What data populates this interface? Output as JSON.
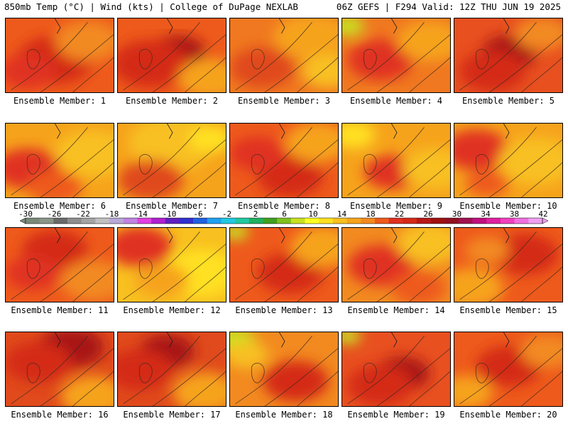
{
  "header": {
    "left": "850mb Temp (°C) | Wind (kts) | College of DuPage NEXLAB",
    "right": "06Z GEFS | F294 Valid: 12Z THU JUN 19 2025"
  },
  "panels": [
    {
      "label": "Ensemble Member: 1",
      "base": "#ee5a1c",
      "blobs": [
        [
          "#d42a18",
          0.45,
          0.55,
          0.35
        ],
        [
          "#f28a20",
          0.75,
          0.3,
          0.3
        ],
        [
          "#e03020",
          0.2,
          0.7,
          0.25
        ]
      ]
    },
    {
      "label": "Ensemble Member: 2",
      "base": "#ee5a1c",
      "blobs": [
        [
          "#a81818",
          0.55,
          0.45,
          0.25
        ],
        [
          "#d42a18",
          0.3,
          0.6,
          0.35
        ],
        [
          "#f6a31c",
          0.85,
          0.8,
          0.3
        ]
      ]
    },
    {
      "label": "Ensemble Member: 3",
      "base": "#f07820",
      "blobs": [
        [
          "#f6a31c",
          0.75,
          0.25,
          0.35
        ],
        [
          "#e04a1c",
          0.3,
          0.65,
          0.3
        ],
        [
          "#f8c020",
          0.9,
          0.7,
          0.25
        ]
      ]
    },
    {
      "label": "Ensemble Member: 4",
      "base": "#f07820",
      "blobs": [
        [
          "#c8e020",
          0.05,
          0.1,
          0.15
        ],
        [
          "#e03020",
          0.35,
          0.55,
          0.3
        ],
        [
          "#f6a31c",
          0.8,
          0.3,
          0.3
        ]
      ]
    },
    {
      "label": "Ensemble Member: 5",
      "base": "#e85020",
      "blobs": [
        [
          "#a81818",
          0.5,
          0.45,
          0.25
        ],
        [
          "#d42a18",
          0.35,
          0.7,
          0.3
        ],
        [
          "#f28a20",
          0.8,
          0.2,
          0.25
        ]
      ]
    },
    {
      "label": "Ensemble Member: 6",
      "base": "#f6a31c",
      "blobs": [
        [
          "#e03020",
          0.2,
          0.6,
          0.3
        ],
        [
          "#f8c020",
          0.8,
          0.4,
          0.35
        ],
        [
          "#ee5a1c",
          0.45,
          0.85,
          0.25
        ]
      ]
    },
    {
      "label": "Ensemble Member: 7",
      "base": "#f6a31c",
      "blobs": [
        [
          "#f8c020",
          0.5,
          0.25,
          0.4
        ],
        [
          "#e04a1c",
          0.3,
          0.75,
          0.3
        ],
        [
          "#ffe020",
          0.85,
          0.2,
          0.2
        ]
      ]
    },
    {
      "label": "Ensemble Member: 8",
      "base": "#ee5a1c",
      "blobs": [
        [
          "#d42a18",
          0.55,
          0.7,
          0.3
        ],
        [
          "#f6a31c",
          0.8,
          0.25,
          0.3
        ],
        [
          "#e03020",
          0.25,
          0.4,
          0.25
        ]
      ]
    },
    {
      "label": "Ensemble Member: 9",
      "base": "#f6a31c",
      "blobs": [
        [
          "#e03020",
          0.45,
          0.65,
          0.25
        ],
        [
          "#ffe020",
          0.1,
          0.15,
          0.2
        ],
        [
          "#f8c020",
          0.85,
          0.6,
          0.3
        ]
      ]
    },
    {
      "label": "Ensemble Member: 10",
      "base": "#f6a31c",
      "blobs": [
        [
          "#e03020",
          0.2,
          0.35,
          0.3
        ],
        [
          "#f8c020",
          0.75,
          0.5,
          0.35
        ],
        [
          "#ee5a1c",
          0.3,
          0.8,
          0.2
        ]
      ]
    },
    {
      "label": "Ensemble Member: 11",
      "base": "#ee5a1c",
      "blobs": [
        [
          "#d42a18",
          0.45,
          0.3,
          0.3
        ],
        [
          "#f28a20",
          0.8,
          0.7,
          0.3
        ],
        [
          "#e03020",
          0.25,
          0.6,
          0.25
        ]
      ]
    },
    {
      "label": "Ensemble Member: 12",
      "base": "#f8c020",
      "blobs": [
        [
          "#ffe020",
          0.75,
          0.6,
          0.35
        ],
        [
          "#e03020",
          0.2,
          0.25,
          0.3
        ],
        [
          "#f6a31c",
          0.4,
          0.7,
          0.25
        ]
      ]
    },
    {
      "label": "Ensemble Member: 13",
      "base": "#ee5a1c",
      "blobs": [
        [
          "#d42a18",
          0.55,
          0.6,
          0.3
        ],
        [
          "#c8e020",
          0.05,
          0.05,
          0.12
        ],
        [
          "#f6a31c",
          0.85,
          0.25,
          0.3
        ]
      ]
    },
    {
      "label": "Ensemble Member: 14",
      "base": "#f28a20",
      "blobs": [
        [
          "#e03020",
          0.35,
          0.5,
          0.3
        ],
        [
          "#f8c020",
          0.8,
          0.2,
          0.3
        ],
        [
          "#ee5a1c",
          0.7,
          0.8,
          0.25
        ]
      ]
    },
    {
      "label": "Ensemble Member: 15",
      "base": "#ee5a1c",
      "blobs": [
        [
          "#d42a18",
          0.65,
          0.35,
          0.3
        ],
        [
          "#f6a31c",
          0.15,
          0.8,
          0.3
        ],
        [
          "#f28a20",
          0.3,
          0.3,
          0.2
        ]
      ]
    },
    {
      "label": "Ensemble Member: 16",
      "base": "#e04a1c",
      "blobs": [
        [
          "#a81818",
          0.6,
          0.2,
          0.3
        ],
        [
          "#d42a18",
          0.3,
          0.4,
          0.3
        ],
        [
          "#f6a31c",
          0.8,
          0.85,
          0.3
        ]
      ]
    },
    {
      "label": "Ensemble Member: 17",
      "base": "#e04a1c",
      "blobs": [
        [
          "#a81818",
          0.45,
          0.25,
          0.25
        ],
        [
          "#d42a18",
          0.2,
          0.5,
          0.3
        ],
        [
          "#f6a31c",
          0.8,
          0.8,
          0.3
        ]
      ]
    },
    {
      "label": "Ensemble Member: 18",
      "base": "#f28a20",
      "blobs": [
        [
          "#c8e020",
          0.05,
          0.1,
          0.18
        ],
        [
          "#d42a18",
          0.6,
          0.65,
          0.3
        ],
        [
          "#f8c020",
          0.15,
          0.3,
          0.2
        ]
      ]
    },
    {
      "label": "Ensemble Member: 19",
      "base": "#e85020",
      "blobs": [
        [
          "#a81818",
          0.55,
          0.55,
          0.25
        ],
        [
          "#c8e020",
          0.05,
          0.05,
          0.12
        ],
        [
          "#d42a18",
          0.35,
          0.7,
          0.3
        ]
      ]
    },
    {
      "label": "Ensemble Member: 20",
      "base": "#ee5a1c",
      "blobs": [
        [
          "#d42a18",
          0.5,
          0.45,
          0.3
        ],
        [
          "#f6a31c",
          0.1,
          0.8,
          0.25
        ],
        [
          "#f28a20",
          0.85,
          0.25,
          0.25
        ]
      ]
    }
  ],
  "colorbar": {
    "ticks": [
      "-30",
      "-26",
      "-22",
      "-18",
      "-14",
      "-10",
      "-6",
      "-2",
      "2",
      "6",
      "10",
      "14",
      "18",
      "22",
      "26",
      "30",
      "34",
      "38",
      "42"
    ],
    "colors": [
      "#7a8a7a",
      "#8a968a",
      "#6a6a6a",
      "#8e8e8e",
      "#a4a4a4",
      "#c0c0c0",
      "#b8a8d8",
      "#c084e0",
      "#e040e0",
      "#b020d0",
      "#6020c0",
      "#3030d0",
      "#2060e0",
      "#20a0f0",
      "#20c8e0",
      "#20c8a0",
      "#20b060",
      "#40a020",
      "#80c020",
      "#c8e020",
      "#ffff20",
      "#ffe020",
      "#f8c020",
      "#f6a31c",
      "#f28a20",
      "#ee5a1c",
      "#e03020",
      "#d42a18",
      "#b81818",
      "#a01010",
      "#901020",
      "#a01050",
      "#c01080",
      "#e020a0",
      "#f040c0",
      "#f070e0",
      "#f0a0f0"
    ]
  }
}
